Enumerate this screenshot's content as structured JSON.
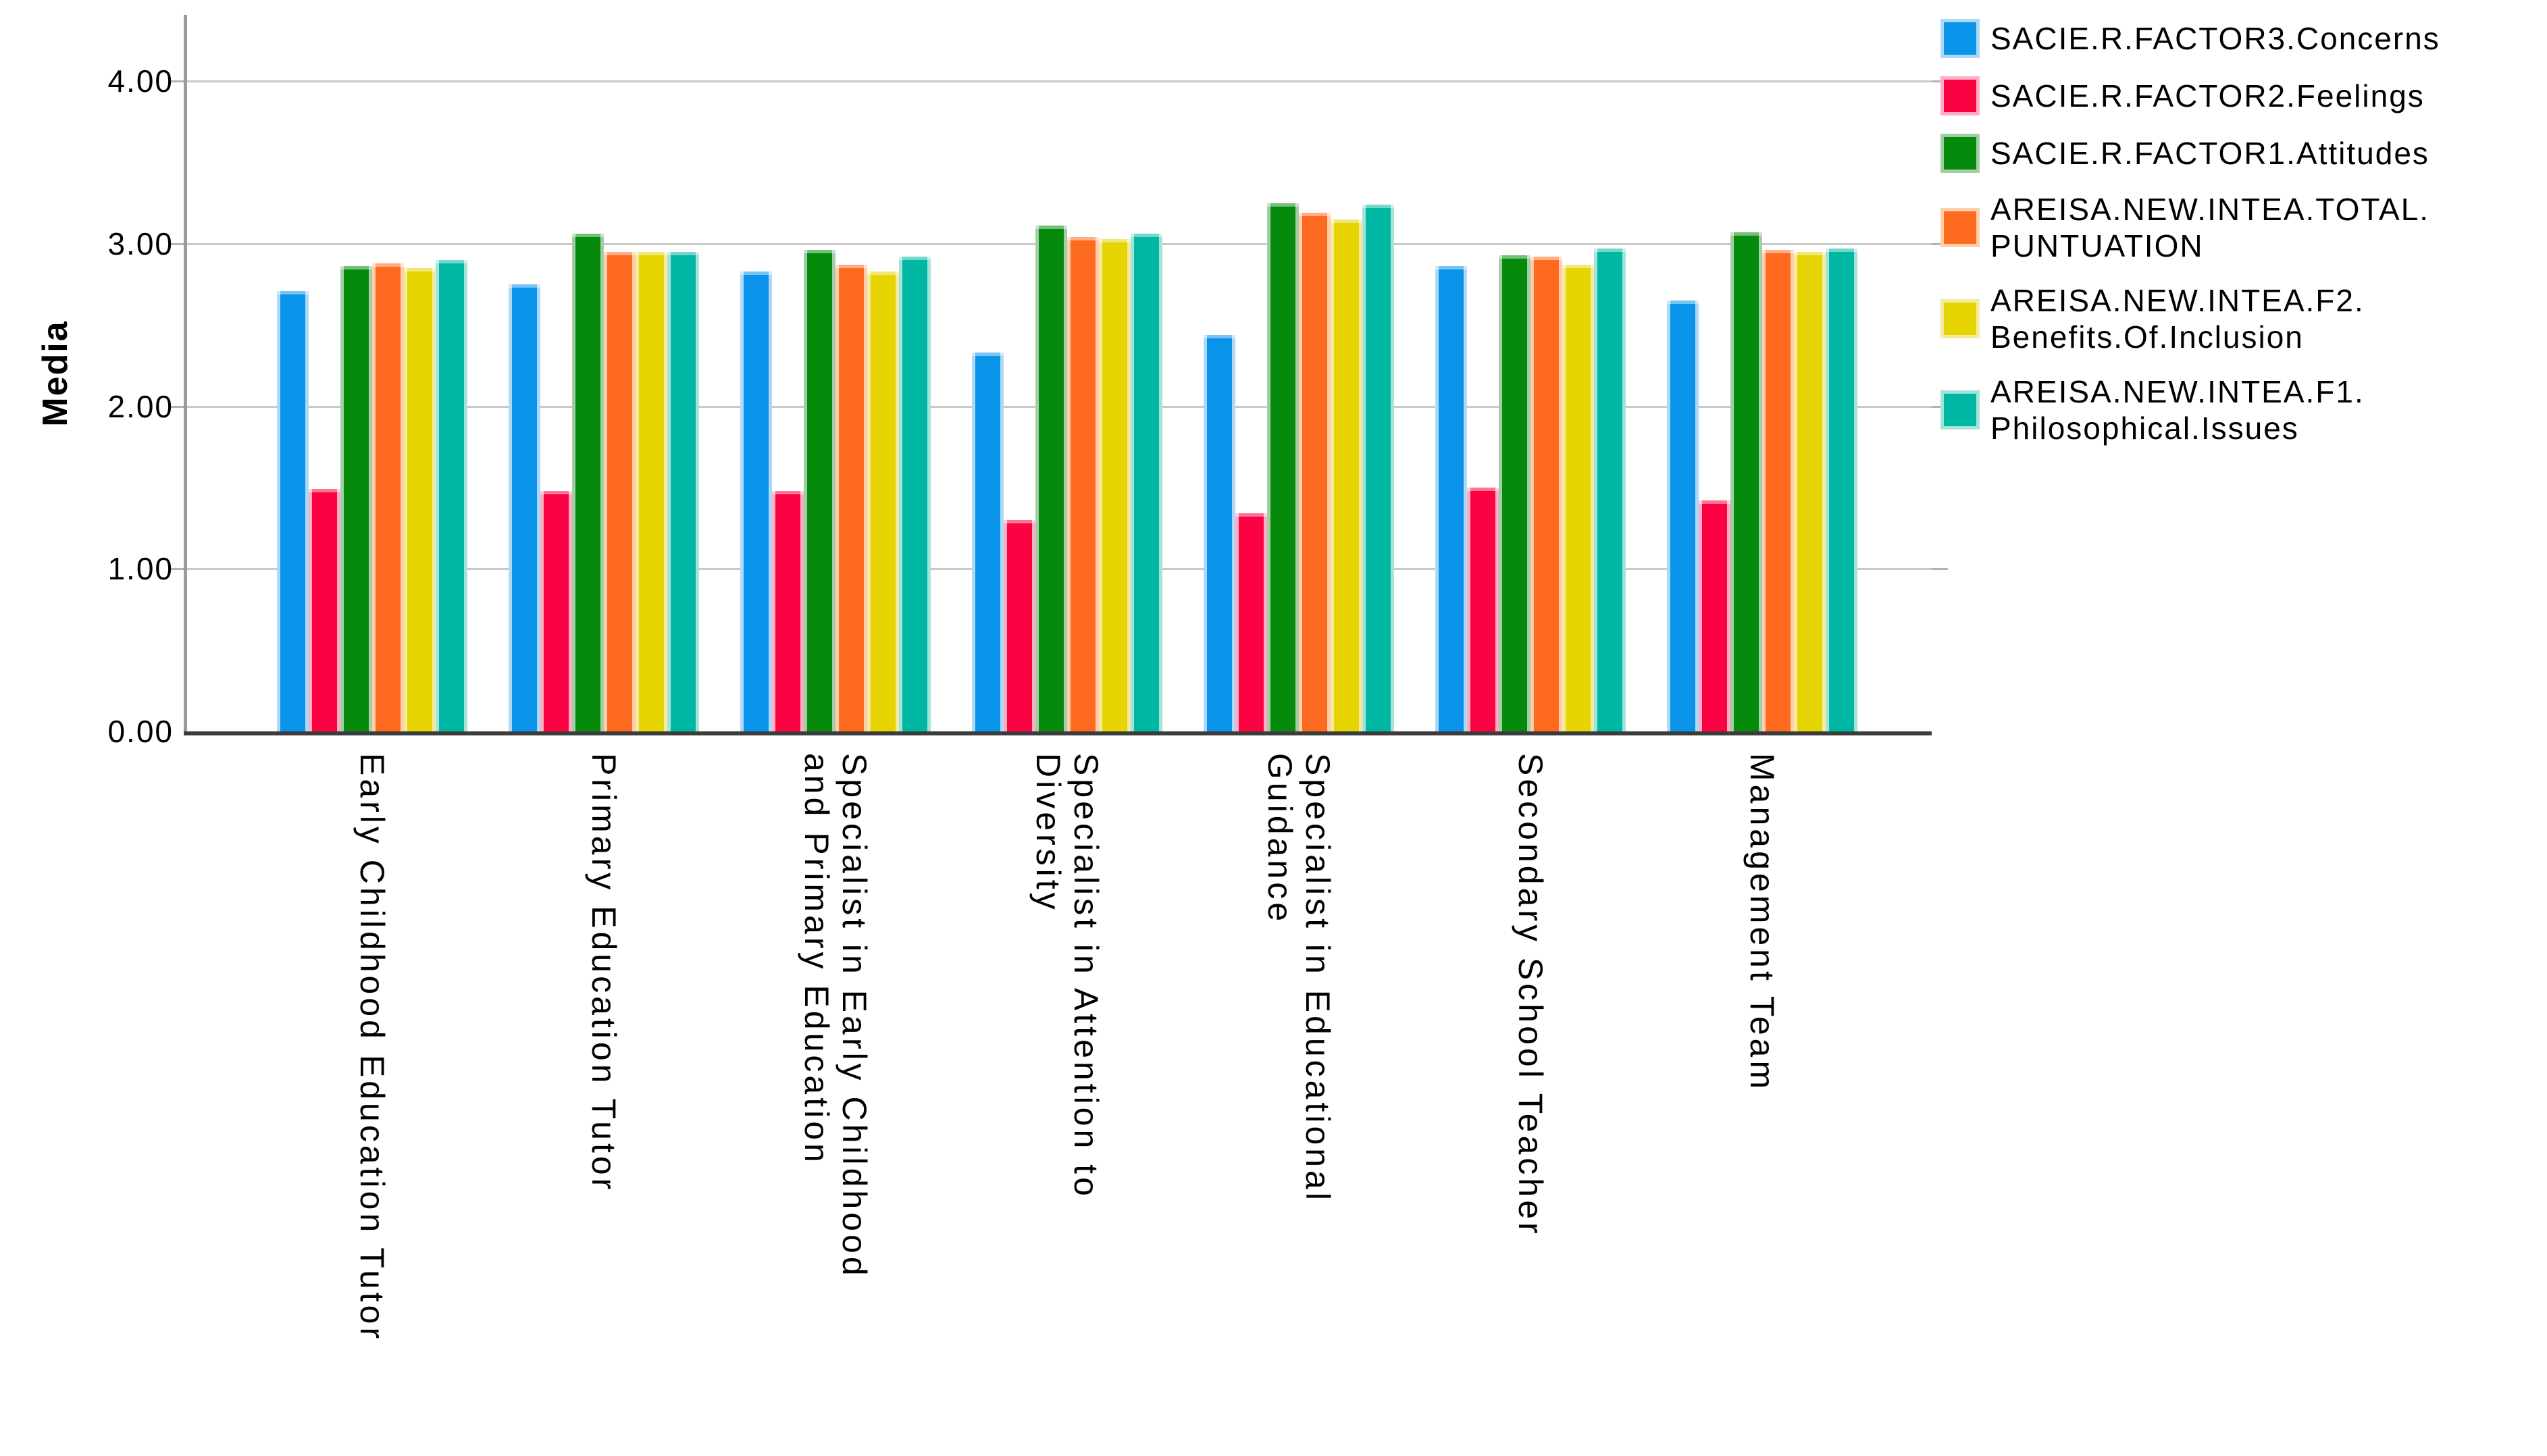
{
  "chart_data": {
    "type": "bar",
    "title": "",
    "xlabel": "",
    "ylabel": "Media",
    "ylim": [
      0,
      4.4
    ],
    "grid": "horizontal",
    "legend_position": "top-right-outside",
    "y_ticks": [
      {
        "value": 0,
        "label": "0.00"
      },
      {
        "value": 1,
        "label": "1.00"
      },
      {
        "value": 2,
        "label": "2.00"
      },
      {
        "value": 3,
        "label": "3.00"
      },
      {
        "value": 4,
        "label": "4.00"
      }
    ],
    "categories": [
      "Early Childhood Education Tutor",
      "Primary Education Tutor",
      "Specialist in Early Childhood\nand Primary Education",
      "Specialist in Attention to\nDiversity",
      "Specialist in Educational\nGuidance",
      "Secondary School Teacher",
      "Management Team"
    ],
    "series": [
      {
        "name": "SACIE.R.FACTOR3.Concerns",
        "legend_label": "SACIE.R.FACTOR3.Concerns",
        "color": "#0993E9",
        "edge_color": "#AFD8F8",
        "values": [
          2.71,
          2.75,
          2.83,
          2.33,
          2.44,
          2.86,
          2.65
        ]
      },
      {
        "name": "SACIE.R.FACTOR2.Feelings",
        "legend_label": "SACIE.R.FACTOR2.Feelings",
        "color": "#FB0343",
        "edge_color": "#FDAEC0",
        "values": [
          1.49,
          1.48,
          1.48,
          1.3,
          1.34,
          1.5,
          1.42
        ]
      },
      {
        "name": "SACIE.R.FACTOR1.Attitudes",
        "legend_label": "SACIE.R.FACTOR1.Attitudes",
        "color": "#068A0C",
        "edge_color": "#A3CDA7",
        "values": [
          2.86,
          3.06,
          2.96,
          3.11,
          3.25,
          2.93,
          3.07
        ]
      },
      {
        "name": "AREISA.NEW.INTEA.TOTAL.PUNTUATION",
        "legend_label": "AREISA.NEW.INTEA.TOTAL.\nPUNTUATION",
        "color": "#FD6A20",
        "edge_color": "#FECDA9",
        "values": [
          2.88,
          2.95,
          2.87,
          3.04,
          3.19,
          2.92,
          2.96
        ]
      },
      {
        "name": "AREISA.NEW.INTEA.F2.Benefits.Of.Inclusion",
        "legend_label": "AREISA.NEW.INTEA.F2.\nBenefits.Of.Inclusion",
        "color": "#E6D403",
        "edge_color": "#F3EBA2",
        "values": [
          2.85,
          2.95,
          2.83,
          3.03,
          3.15,
          2.87,
          2.95
        ]
      },
      {
        "name": "AREISA.NEW.INTEA.F1.Philosophical.Issues",
        "legend_label": "AREISA.NEW.INTEA.F1.\nPhilosophical.Issues",
        "color": "#00B7A3",
        "edge_color": "#A5E2D9",
        "values": [
          2.9,
          2.95,
          2.92,
          3.06,
          3.24,
          2.97,
          2.97
        ]
      }
    ]
  }
}
